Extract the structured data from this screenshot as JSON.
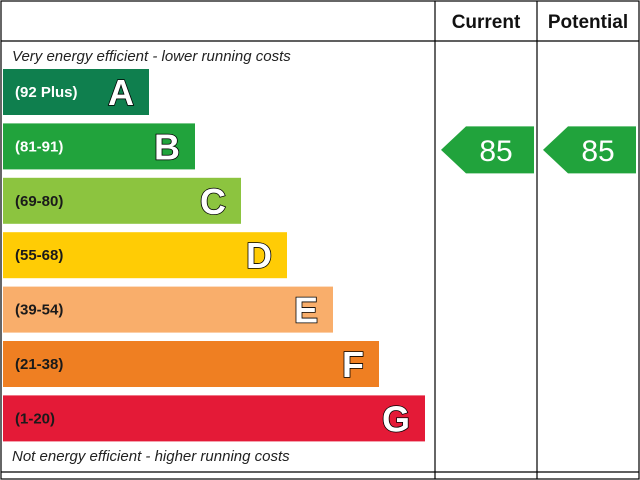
{
  "headers": {
    "current": "Current",
    "potential": "Potential"
  },
  "notes": {
    "top": "Very energy efficient - lower running costs",
    "bottom": "Not energy efficient - higher running costs"
  },
  "chart_data": {
    "type": "bar",
    "categories": [
      "A",
      "B",
      "C",
      "D",
      "E",
      "F",
      "G"
    ],
    "bands": [
      {
        "letter": "A",
        "range": "(92 Plus)",
        "min": 92,
        "max": 100,
        "color": "#0f7f4e",
        "range_color": "#ffffff"
      },
      {
        "letter": "B",
        "range": "(81-91)",
        "min": 81,
        "max": 91,
        "color": "#21a33c",
        "range_color": "#ffffff"
      },
      {
        "letter": "C",
        "range": "(69-80)",
        "min": 69,
        "max": 80,
        "color": "#8cc43f",
        "range_color": "#1a1a1a"
      },
      {
        "letter": "D",
        "range": "(55-68)",
        "min": 55,
        "max": 68,
        "color": "#ffcc05",
        "range_color": "#1a1a1a"
      },
      {
        "letter": "E",
        "range": "(39-54)",
        "min": 39,
        "max": 54,
        "color": "#f9ae6b",
        "range_color": "#1a1a1a"
      },
      {
        "letter": "F",
        "range": "(21-38)",
        "min": 21,
        "max": 38,
        "color": "#ef7f22",
        "range_color": "#1a1a1a"
      },
      {
        "letter": "G",
        "range": "(1-20)",
        "min": 1,
        "max": 20,
        "color": "#e41a37",
        "range_color": "#1a1a1a"
      }
    ],
    "current": {
      "value": 85,
      "band": "B",
      "color": "#21a33c"
    },
    "potential": {
      "value": 85,
      "band": "B",
      "color": "#21a33c"
    }
  }
}
